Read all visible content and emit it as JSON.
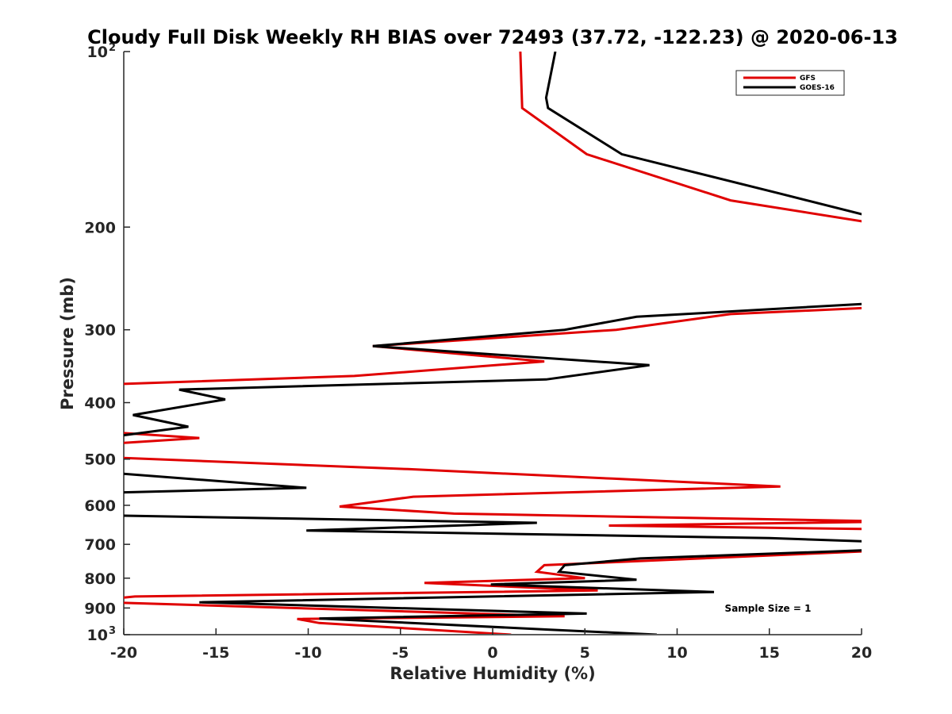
{
  "chart_data": {
    "type": "line",
    "title": "Cloudy Full Disk Weekly RH BIAS over 72493 (37.72, -122.23) @ 2020-06-13",
    "xlabel": "Relative Humidity (%)",
    "ylabel": "Pressure (mb)",
    "xlim": [
      -20,
      20
    ],
    "ylim": [
      100,
      1000
    ],
    "y_scale": "log",
    "y_reversed": true,
    "grid": false,
    "legend_position": "top-right",
    "x_ticks": [
      "-20",
      "-15",
      "-10",
      "-5",
      "0",
      "5",
      "10",
      "15",
      "20"
    ],
    "y_ticks": [
      {
        "base": "10",
        "exp": "2"
      },
      {
        "base": "200",
        "exp": ""
      },
      {
        "base": "300",
        "exp": ""
      },
      {
        "base": "400",
        "exp": ""
      },
      {
        "base": "500",
        "exp": ""
      },
      {
        "base": "600",
        "exp": ""
      },
      {
        "base": "700",
        "exp": ""
      },
      {
        "base": "800",
        "exp": ""
      },
      {
        "base": "900",
        "exp": ""
      },
      {
        "base": "10",
        "exp": "3"
      }
    ],
    "annotation": "Sample Size = 1",
    "series": [
      {
        "name": "GFS",
        "color": "#e00000",
        "points": [
          [
            1.5,
            100
          ],
          [
            1.6,
            125
          ],
          [
            5.1,
            150
          ],
          [
            12.9,
            180
          ],
          [
            22,
            200
          ],
          [
            20.5,
            275
          ],
          [
            12.9,
            282
          ],
          [
            6.7,
            300
          ],
          [
            -6.5,
            320
          ],
          [
            2.8,
            340
          ],
          [
            -7.5,
            360
          ],
          [
            -20.5,
            372
          ],
          [
            -20.5,
            450
          ],
          [
            -15.9,
            460
          ],
          [
            -20.5,
            470
          ],
          [
            -20.5,
            497
          ],
          [
            -4.6,
            520
          ],
          [
            6.5,
            540
          ],
          [
            15.6,
            557
          ],
          [
            -4.3,
            580
          ],
          [
            -8.3,
            603
          ],
          [
            -2.1,
            620
          ],
          [
            22,
            640
          ],
          [
            20,
            641
          ],
          [
            6.3,
            650
          ],
          [
            22,
            660
          ],
          [
            22,
            710
          ],
          [
            20,
            720
          ],
          [
            2.8,
            760
          ],
          [
            2.4,
            780
          ],
          [
            5,
            800
          ],
          [
            -3.7,
            815
          ],
          [
            5.7,
            840
          ],
          [
            -19.4,
            860
          ],
          [
            -21,
            870
          ],
          [
            -21,
            880
          ],
          [
            -15.9,
            890
          ],
          [
            3.9,
            930
          ],
          [
            -10.6,
            940
          ],
          [
            -9.4,
            955
          ],
          [
            1,
            1000
          ]
        ]
      },
      {
        "name": "GOES-16",
        "color": "#000000",
        "points": [
          [
            3.4,
            100
          ],
          [
            2.9,
            120
          ],
          [
            3.0,
            125
          ],
          [
            7,
            150
          ],
          [
            15.5,
            175
          ],
          [
            20,
            190
          ],
          [
            21,
            195
          ],
          [
            21,
            270
          ],
          [
            20,
            271
          ],
          [
            7.8,
            285
          ],
          [
            3.9,
            300
          ],
          [
            -6.5,
            320
          ],
          [
            8.5,
            345
          ],
          [
            2.9,
            365
          ],
          [
            -17,
            380
          ],
          [
            -14.5,
            395
          ],
          [
            -19.5,
            420
          ],
          [
            -16.5,
            440
          ],
          [
            -20,
            455
          ],
          [
            -21,
            455
          ],
          [
            -21,
            530
          ],
          [
            -20,
            530
          ],
          [
            -10.1,
            560
          ],
          [
            -20,
            570
          ],
          [
            -21,
            570
          ],
          [
            -21,
            625
          ],
          [
            -20,
            625
          ],
          [
            2.4,
            643
          ],
          [
            -10.1,
            663
          ],
          [
            15,
            683
          ],
          [
            22,
            695
          ],
          [
            22,
            715
          ],
          [
            20,
            717
          ],
          [
            8,
            740
          ],
          [
            3.9,
            760
          ],
          [
            3.6,
            780
          ],
          [
            7.8,
            805
          ],
          [
            -0.1,
            820
          ],
          [
            12,
            845
          ],
          [
            -15.9,
            880
          ],
          [
            5.1,
            920
          ],
          [
            -9.4,
            938
          ],
          [
            3,
            980
          ],
          [
            8.9,
            1000
          ]
        ]
      }
    ]
  }
}
